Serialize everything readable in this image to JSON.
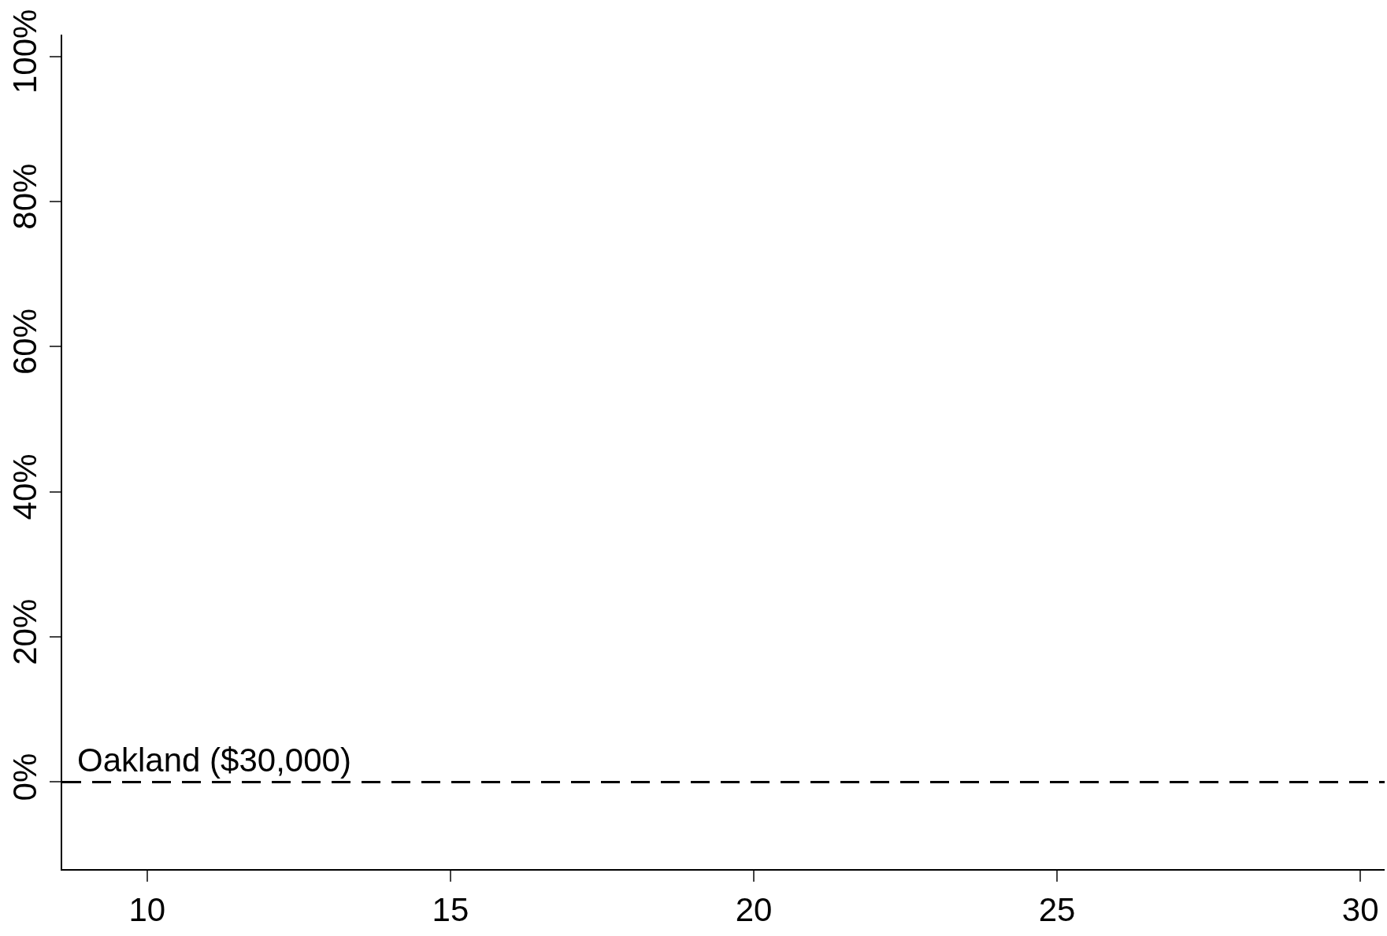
{
  "chart_data": {
    "type": "line",
    "xlim": [
      8.6,
      30.4
    ],
    "xticks": [
      10,
      15,
      20,
      25,
      30
    ],
    "ylim": [
      -12,
      103
    ],
    "yticks": [
      {
        "value": 0,
        "label": "0%"
      },
      {
        "value": 20,
        "label": "20%"
      },
      {
        "value": 40,
        "label": "40%"
      },
      {
        "value": 60,
        "label": "60%"
      },
      {
        "value": 80,
        "label": "80%"
      },
      {
        "value": 100,
        "label": "100%"
      }
    ],
    "ref_lines": [
      {
        "axis": "y",
        "value": 0,
        "label": "Oakland ($30,000)",
        "color": "#000000",
        "line_style": "dashed"
      }
    ],
    "grid": false
  }
}
